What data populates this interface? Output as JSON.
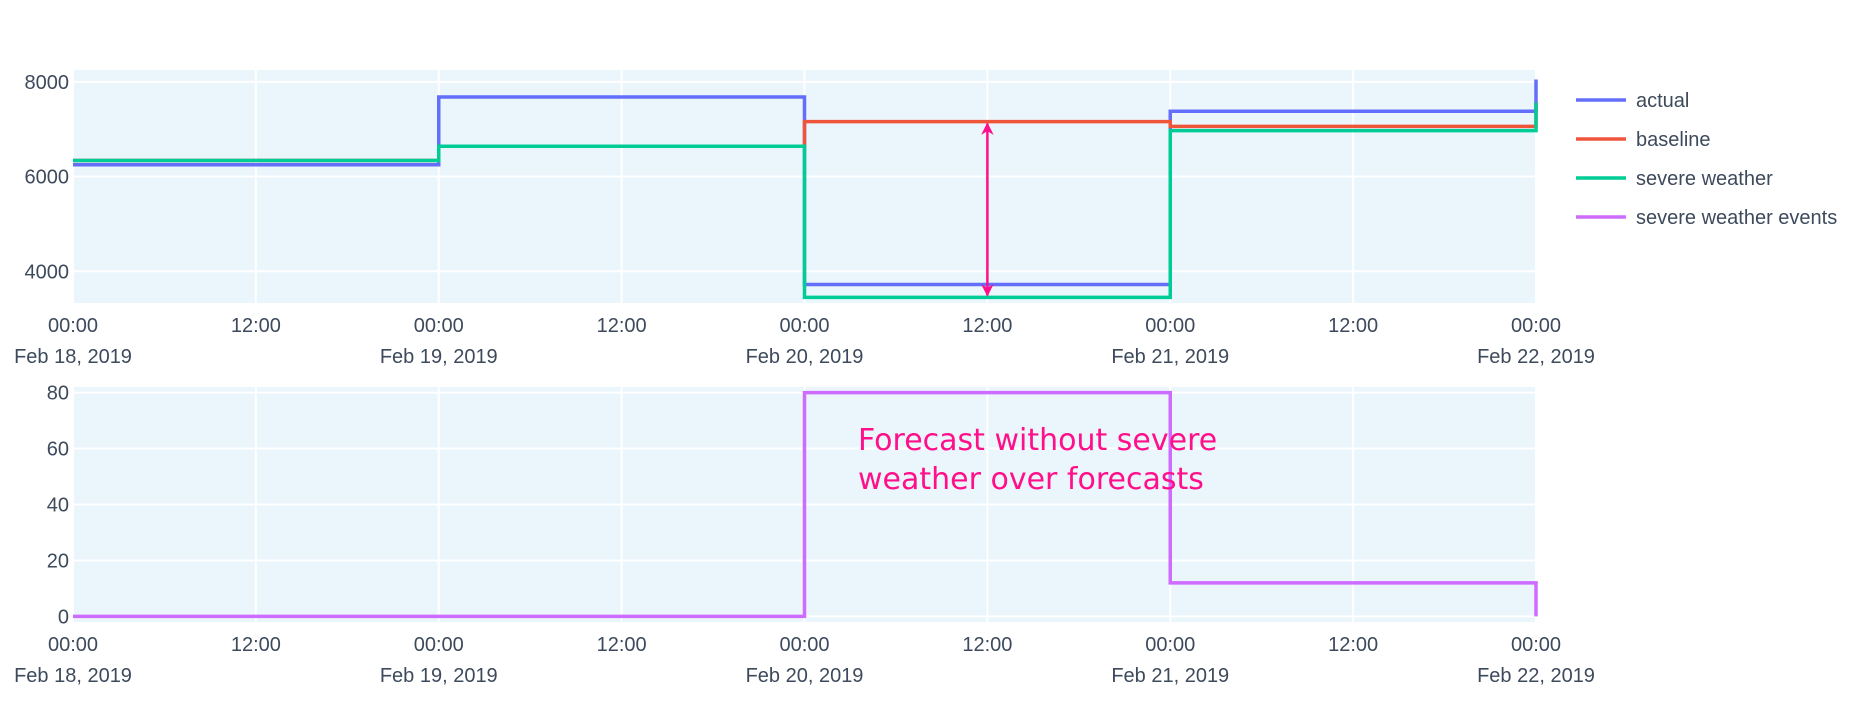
{
  "chart_data": [
    {
      "type": "line",
      "line_shape": "step",
      "title": "",
      "xlabel": "",
      "ylabel": "",
      "x": [
        "2019-02-18 00:00",
        "2019-02-19 00:00",
        "2019-02-20 00:00",
        "2019-02-21 00:00",
        "2019-02-22 00:00"
      ],
      "xlim": [
        "2019-02-18 00:00",
        "2019-02-22 00:00"
      ],
      "ylim": [
        3330,
        8250
      ],
      "yticks": [
        4000,
        6000,
        8000
      ],
      "xticks": [
        {
          "time": "00:00",
          "date": "Feb 18, 2019"
        },
        {
          "time": "12:00",
          "date": ""
        },
        {
          "time": "00:00",
          "date": "Feb 19, 2019"
        },
        {
          "time": "12:00",
          "date": ""
        },
        {
          "time": "00:00",
          "date": "Feb 20, 2019"
        },
        {
          "time": "12:00",
          "date": ""
        },
        {
          "time": "00:00",
          "date": "Feb 21, 2019"
        },
        {
          "time": "12:00",
          "date": ""
        },
        {
          "time": "00:00",
          "date": "Feb 22, 2019"
        }
      ],
      "grid": true,
      "legend_position": "right",
      "series": [
        {
          "name": "actual",
          "color": "#636efa",
          "values": [
            6250,
            7680,
            3720,
            7380,
            8050
          ]
        },
        {
          "name": "baseline",
          "color": "#ef553b",
          "values": [
            6340,
            6640,
            7160,
            7060,
            7560
          ]
        },
        {
          "name": "severe weather",
          "color": "#00cc96",
          "values": [
            6340,
            6640,
            3450,
            6970,
            7560
          ]
        }
      ],
      "arrow_annotation": {
        "x": "2019-02-20 12:00",
        "y_from": 7160,
        "y_to": 3450,
        "color": "#ff0f8a"
      }
    },
    {
      "type": "line",
      "line_shape": "step",
      "title": "",
      "xlabel": "",
      "ylabel": "",
      "x": [
        "2019-02-18 00:00",
        "2019-02-19 00:00",
        "2019-02-20 00:00",
        "2019-02-21 00:00",
        "2019-02-22 00:00"
      ],
      "xlim": [
        "2019-02-18 00:00",
        "2019-02-22 00:00"
      ],
      "ylim": [
        -2,
        82
      ],
      "yticks": [
        0,
        20,
        40,
        60,
        80
      ],
      "xticks": [
        {
          "time": "00:00",
          "date": "Feb 18, 2019"
        },
        {
          "time": "12:00",
          "date": ""
        },
        {
          "time": "00:00",
          "date": "Feb 19, 2019"
        },
        {
          "time": "12:00",
          "date": ""
        },
        {
          "time": "00:00",
          "date": "Feb 20, 2019"
        },
        {
          "time": "12:00",
          "date": ""
        },
        {
          "time": "00:00",
          "date": "Feb 21, 2019"
        },
        {
          "time": "12:00",
          "date": ""
        },
        {
          "time": "00:00",
          "date": "Feb 22, 2019"
        }
      ],
      "grid": true,
      "series": [
        {
          "name": "severe weather events",
          "color": "#ce6cff",
          "values": [
            0,
            0,
            80,
            12,
            0
          ]
        }
      ]
    }
  ],
  "annotation": {
    "lines": [
      "Forecast without severe",
      "weather over forecasts"
    ],
    "color": "#ff0f8a"
  },
  "colors": {
    "plot_background": "#ebf5fc",
    "grid": "#ffffff",
    "tick_text": "#3d4a5c"
  }
}
